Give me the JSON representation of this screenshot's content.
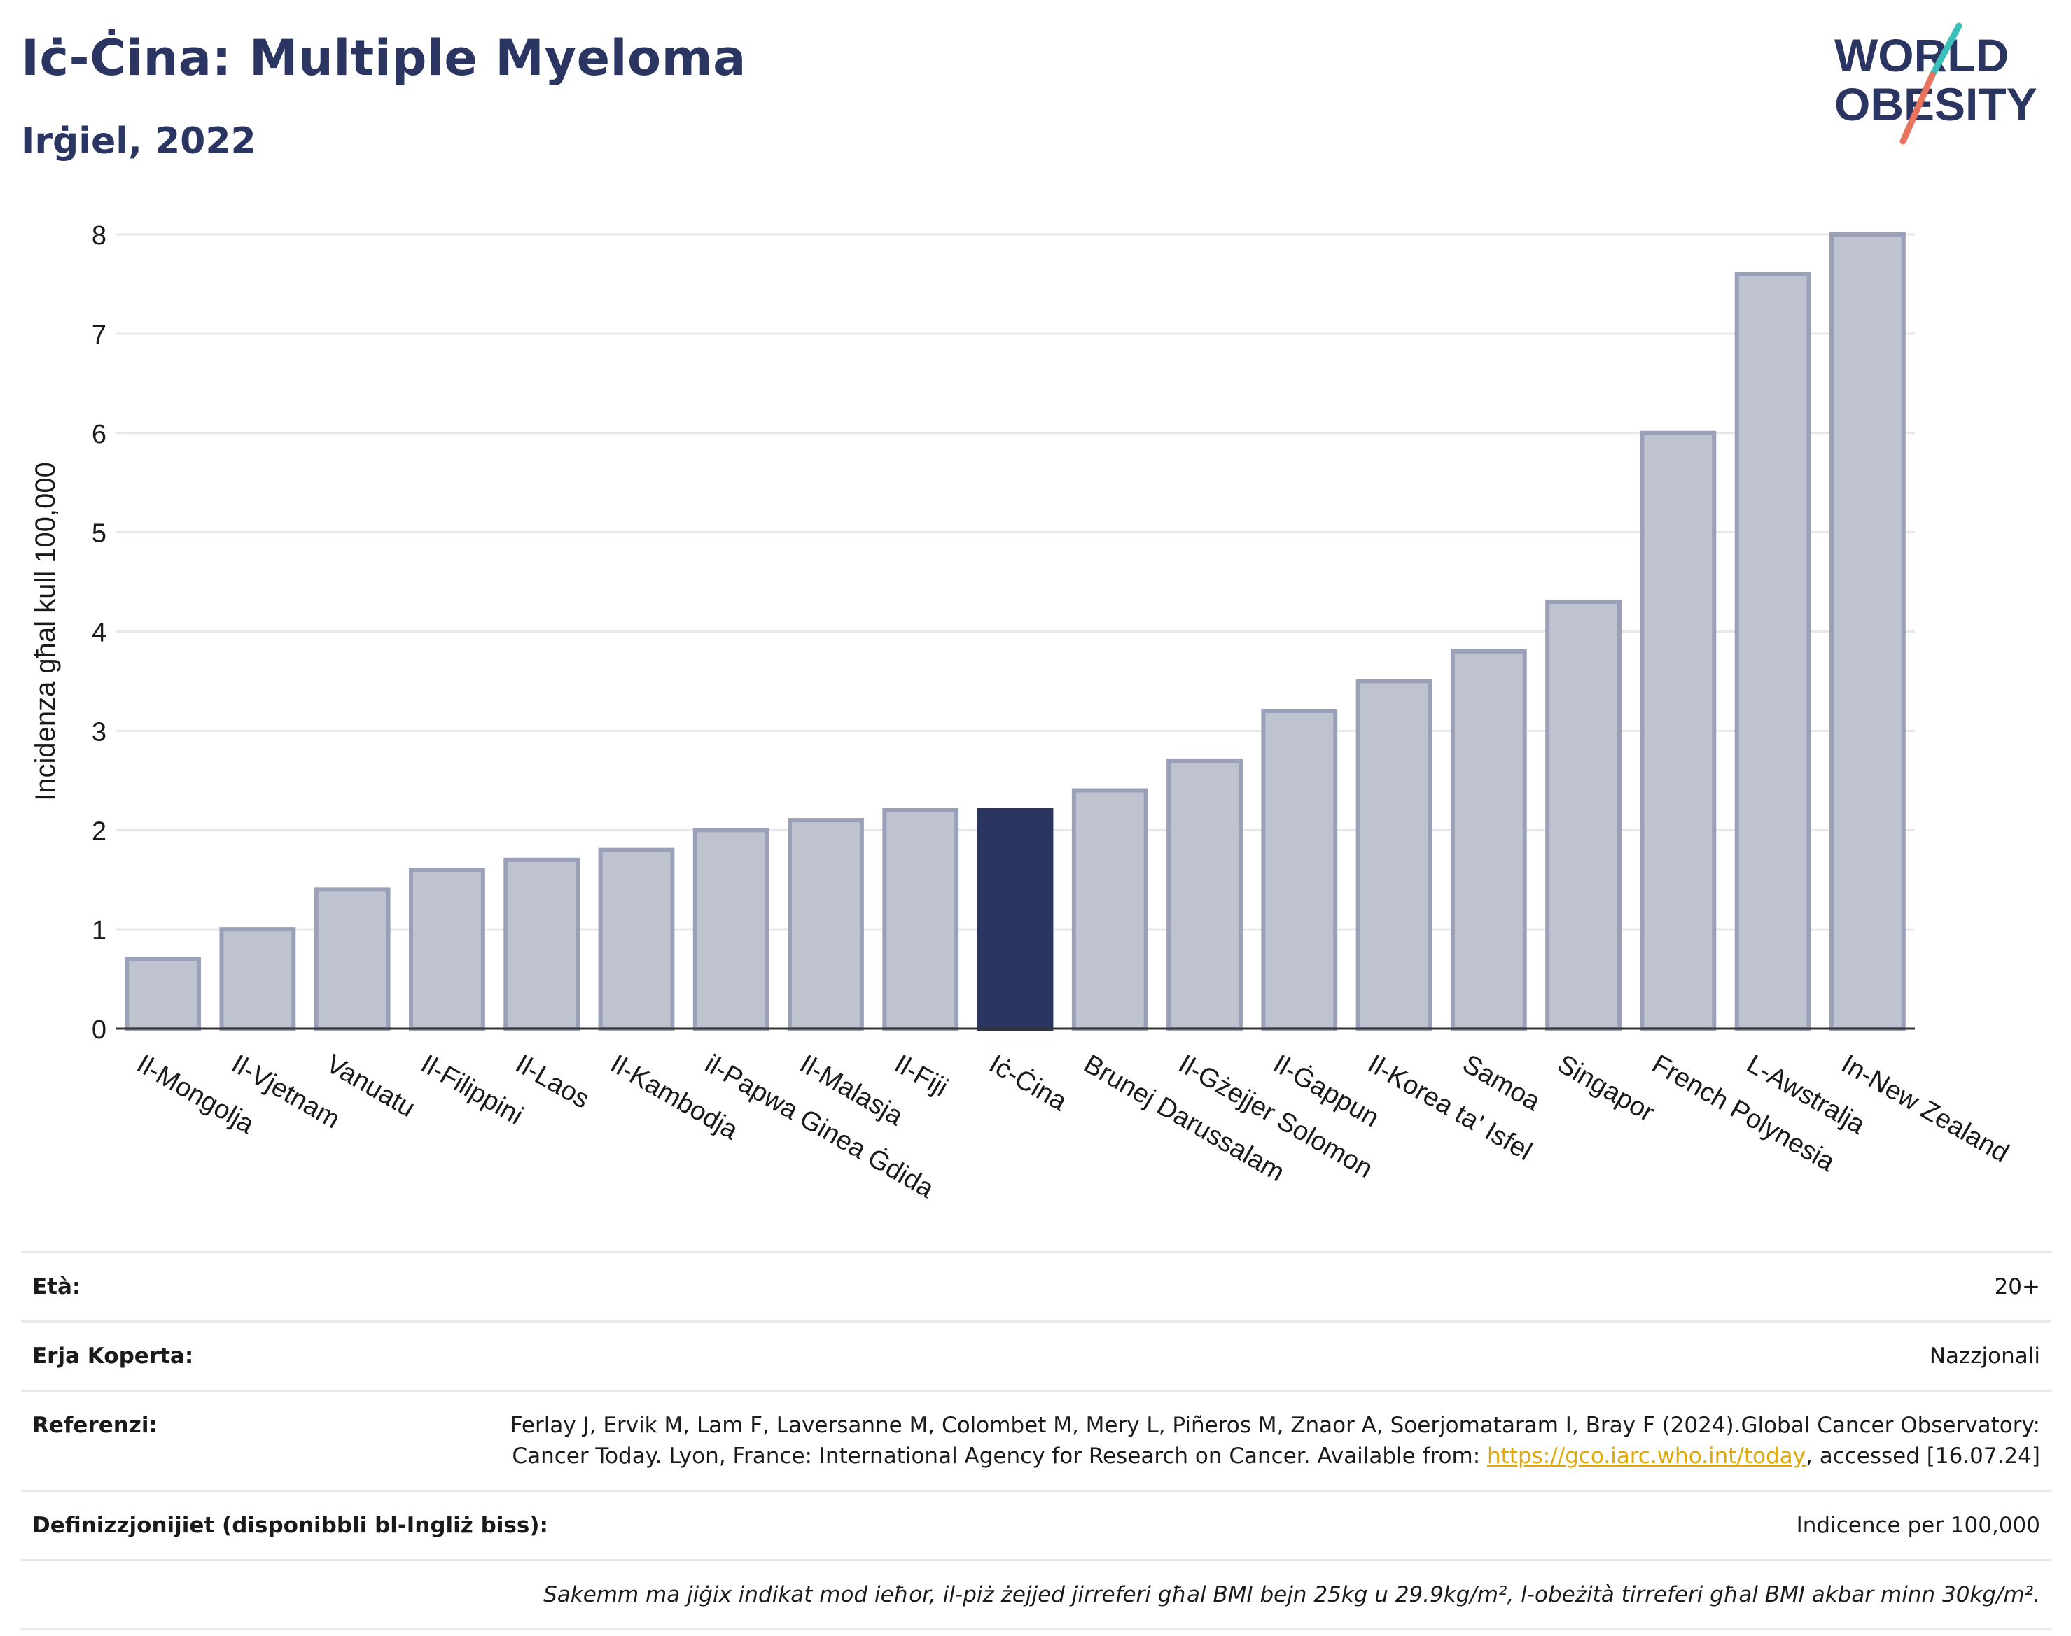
{
  "header": {
    "title": "Iċ-Ċina: Multiple Myeloma",
    "subtitle": "Irġiel, 2022"
  },
  "logo": {
    "line1": "WORLD",
    "line2": "OBESITY",
    "accent_teal": "#3bbfb8",
    "accent_coral": "#e8735f",
    "text_color": "#2b3562"
  },
  "chart_data": {
    "type": "bar",
    "ylabel": "Incidenza għal kull 100,000",
    "ylim": [
      0,
      8
    ],
    "yticks": [
      0,
      1,
      2,
      3,
      4,
      5,
      6,
      7,
      8
    ],
    "categories": [
      "Il-Mongolja",
      "Il-Vjetnam",
      "Vanuatu",
      "Il-Filippini",
      "Il-Laos",
      "Il-Kambodja",
      "il-Papwa Ginea Ġdida",
      "Il-Malasja",
      "Il-Fiji",
      "Iċ-Ċina",
      "Brunej Darussalam",
      "Il-Gżejjer Solomon",
      "Il-Ġappun",
      "Il-Korea ta' Isfel",
      "Samoa",
      "Singapor",
      "French Polynesia",
      "L-Awstralja",
      "In-New Zealand"
    ],
    "values": [
      0.7,
      1.0,
      1.4,
      1.6,
      1.7,
      1.8,
      2.0,
      2.1,
      2.2,
      2.2,
      2.4,
      2.7,
      3.2,
      3.5,
      3.8,
      4.3,
      6.0,
      7.6,
      8.0
    ],
    "highlight": "Iċ-Ċina",
    "colors": {
      "bar": "#bfc3d0",
      "bar_border": "#9aa0b8",
      "highlight": "#2b3562",
      "grid": "#e6e8ee"
    },
    "grid": true,
    "legend": "none"
  },
  "info": {
    "age_label": "Età:",
    "age_value": "20+",
    "area_label": "Erja Koperta:",
    "area_value": "Nazzjonali",
    "ref_label": "Referenzi:",
    "ref_text_1": "Ferlay J, Ervik M, Lam F, Laversanne M, Colombet M, Mery L, Piñeros M, Znaor A, Soerjomataram I, Bray F (2024).Global Cancer Observatory: Cancer Today. Lyon, France: International Agency for Research on Cancer. Available from: ",
    "ref_link": "https://gco.iarc.who.int/today",
    "ref_text_2": ", accessed [16.07.24]",
    "def_label": "Definizzjonijiet (disponibbli bl-Ingliż biss):",
    "def_value": "Indicence per 100,000",
    "note": "Sakemm ma jiġix indikat mod ieħor, il-piż żejjed jirreferi għal BMI bejn 25kg u 29.9kg/m², l-obeżità tirreferi għal BMI akbar minn 30kg/m²."
  }
}
